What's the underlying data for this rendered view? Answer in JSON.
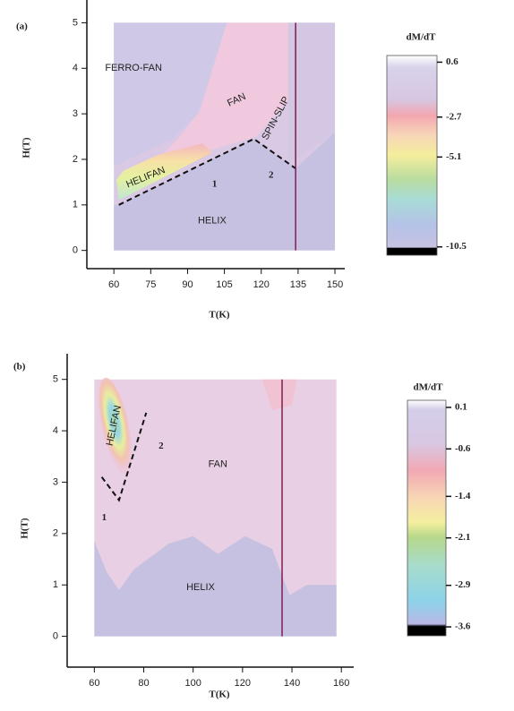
{
  "chart_data": [
    {
      "type": "contour",
      "label": "(a)",
      "x_label": "T(K)",
      "y_label": "H(T)",
      "xlim": [
        49,
        154
      ],
      "ylim": [
        -0.4,
        5.5
      ],
      "xticks": [
        60,
        75,
        90,
        105,
        120,
        135,
        150
      ],
      "yticks": [
        0,
        1,
        2,
        3,
        4,
        5
      ],
      "colorbar": {
        "title": "dM/dT",
        "lim": [
          1,
          -11
        ],
        "ticks": [
          0.6,
          -2.7,
          -5.1,
          -10.5
        ]
      },
      "annotations": [
        "FERRO-FAN",
        "FAN",
        "SPIN-SLIP",
        "HELIFAN",
        "1",
        "2",
        "HELIX"
      ]
    },
    {
      "type": "contour",
      "label": "(b)",
      "x_label": "T(K)",
      "y_label": "H(T)",
      "xlim": [
        49,
        165
      ],
      "ylim": [
        -0.6,
        5.5
      ],
      "xticks": [
        60,
        80,
        100,
        120,
        140,
        160
      ],
      "yticks": [
        0,
        1,
        2,
        3,
        4,
        5
      ],
      "colorbar": {
        "title": "dM/dT",
        "lim": [
          0.22,
          -3.75
        ],
        "ticks": [
          0.1,
          -0.6,
          -1.4,
          -2.1,
          -2.9,
          -3.6
        ]
      },
      "annotations": [
        "HELIFAN",
        "2",
        "1",
        "FAN",
        "HELIX"
      ]
    }
  ]
}
